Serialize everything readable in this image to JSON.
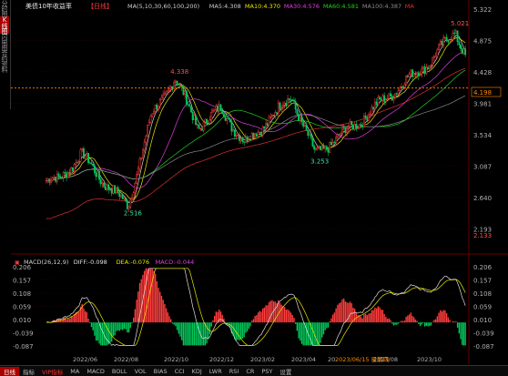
{
  "title": "美债10年收益率",
  "period": "【日线】",
  "ma_legend": [
    {
      "text": "MA(5,10,30,60,100,200)",
      "color": "#cfcfcf"
    },
    {
      "text": "MA5:4.308",
      "color": "#cfcfcf"
    },
    {
      "text": "MA10:4.370",
      "color": "#e8e800"
    },
    {
      "text": "MA30:4.576",
      "color": "#e040e0"
    },
    {
      "text": "MA60:4.581",
      "color": "#20d020"
    },
    {
      "text": "MA100:4.387",
      "color": "#8a8a8a"
    },
    {
      "text": "MA",
      "color": "#e03030"
    }
  ],
  "side_tabs": [
    "分时图",
    "K线图",
    "闪电图",
    "合约资料"
  ],
  "price_axis": [
    "5.322",
    "4.875",
    "4.428",
    "3.981",
    "3.534",
    "3.087",
    "2.640",
    "2.193"
  ],
  "last_price": "4.198",
  "low_tag": "2.133",
  "annotations": [
    "5.021",
    "4.338",
    "3.253",
    "2.516"
  ],
  "macd_legend": [
    {
      "text": "MACD(26,12,9)",
      "color": "#cfcfcf"
    },
    {
      "text": "DIFF:-0.098",
      "color": "#e0e0e0"
    },
    {
      "text": "DEA:-0.076",
      "color": "#e8e800"
    },
    {
      "text": "MACD:-0.044",
      "color": "#e040e0"
    }
  ],
  "macd_axis": [
    "0.206",
    "0.157",
    "0.108",
    "0.059",
    "0.010",
    "-0.039",
    "-0.087"
  ],
  "date_axis": [
    "2022/06",
    "2022/08",
    "2022/10",
    "2022/12",
    "2023/02",
    "2023/04",
    "20",
    "2023/08",
    "2023/10"
  ],
  "cursor_date": "2023/06/15 星期四",
  "bottom_tabs": [
    "日线",
    "指标",
    "VIP指标",
    "MA",
    "MACD",
    "BOLL",
    "VOL",
    "BIAS",
    "CCI",
    "KDJ",
    "LWR",
    "RSI",
    "CR",
    "PSY",
    "设置"
  ],
  "colors": {
    "up": "#ff3c3c",
    "down": "#00c85a",
    "bg": "#000000",
    "grid": "#3a0000",
    "axis_text": "#b0b0b0",
    "hline": "#ff8a00"
  },
  "chart_data": {
    "type": "candlestick",
    "title": "美债10年收益率",
    "x_range": [
      "2022/05",
      "2023/10"
    ],
    "ylim": [
      2.133,
      5.322
    ],
    "reference_price": 4.198,
    "path_key_points": [
      {
        "date": "2022/05",
        "value": 2.88
      },
      {
        "date": "2022/06",
        "value": 3.25
      },
      {
        "date": "2022/07",
        "value": 2.85
      },
      {
        "date": "2022/08",
        "value": 2.52
      },
      {
        "date": "2022/09",
        "value": 3.8
      },
      {
        "date": "2022/10",
        "value": 4.34
      },
      {
        "date": "2022/11",
        "value": 3.65
      },
      {
        "date": "2022/12",
        "value": 3.9
      },
      {
        "date": "2023/01",
        "value": 3.4
      },
      {
        "date": "2023/03",
        "value": 4.08
      },
      {
        "date": "2023/04",
        "value": 3.25
      },
      {
        "date": "2023/06",
        "value": 3.75
      },
      {
        "date": "2023/07",
        "value": 4.05
      },
      {
        "date": "2023/09",
        "value": 4.6
      },
      {
        "date": "2023/10",
        "value": 5.02
      },
      {
        "date": "2023/11",
        "value": 4.2
      }
    ],
    "macd_ylim": [
      -0.087,
      0.206
    ]
  }
}
